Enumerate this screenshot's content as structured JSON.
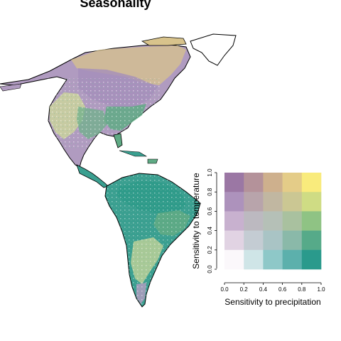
{
  "title": "Seasonality",
  "legend": {
    "x_label": "Sensitivity to precipitation",
    "y_label": "Sensitivity to temperature",
    "x_ticks": [
      "0.0",
      "0.2",
      "0.4",
      "0.6",
      "0.8",
      "1.0"
    ],
    "y_ticks": [
      "0.0",
      "0.2",
      "0.4",
      "0.6",
      "0.8",
      "1.0"
    ],
    "grid_colors": [
      [
        "#9b77a4",
        "#b4929a",
        "#ceb08d",
        "#e4cc88",
        "#f9eb7c"
      ],
      [
        "#ad92bc",
        "#b8a4ab",
        "#c1b7a1",
        "#cbc793",
        "#cfdc84"
      ],
      [
        "#c8b1cf",
        "#bcb9c0",
        "#b5c0b7",
        "#a9c19f",
        "#8fc384"
      ],
      [
        "#e1d3e3",
        "#c4ccd3",
        "#a9c4c5",
        "#8ab9a9",
        "#56aa89"
      ],
      [
        "#fbf8fb",
        "#cfe5e7",
        "#8ec8c8",
        "#5cb0ac",
        "#2a9a8c"
      ]
    ]
  },
  "map_colors": {
    "boreal": "#b09bc0",
    "tundra_tan": "#d8c38c",
    "forest_green": "#5faa84",
    "teal": "#3a9f90",
    "light_yellow": "#cdd79a",
    "white_patch": "#ffffff",
    "outline": "#000000"
  }
}
